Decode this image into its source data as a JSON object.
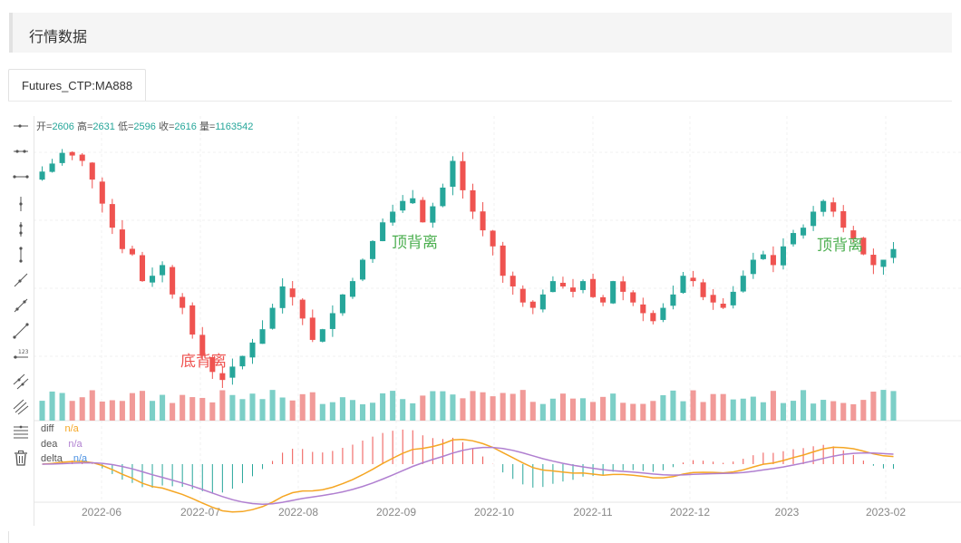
{
  "page": {
    "title": "行情数据"
  },
  "tabs": [
    {
      "label": "Futures_CTP:MA888"
    }
  ],
  "ohlc": {
    "open_label": "开=",
    "open": "2606",
    "high_label": "高=",
    "high": "2631",
    "low_label": "低=",
    "low": "2596",
    "close_label": "收=",
    "close": "2616",
    "vol_label": "量=",
    "vol": "1163542"
  },
  "annotations": {
    "bottom_divergence": "底背离",
    "top_divergence_1": "顶背离",
    "top_divergence_2": "顶背离"
  },
  "indicator_legend": [
    {
      "name": "diff",
      "value": "n/a",
      "color": "#f5a623"
    },
    {
      "name": "dea",
      "value": "n/a",
      "color": "#b07fd0"
    },
    {
      "name": "delta",
      "value": "n/a",
      "color": "#4a90e2"
    }
  ],
  "toolbar_icons": [
    "horizontal-ray-icon",
    "horizontal-segment-icon",
    "horizontal-line-icon",
    "vertical-ray-icon",
    "vertical-segment-icon",
    "vertical-line-icon",
    "ray-icon",
    "segment-icon",
    "straight-line-icon",
    "price-line-icon",
    "parallel-lines-icon",
    "price-channel-icon",
    "fibonacci-icon",
    "delete-icon"
  ],
  "colors": {
    "up": "#26a69a",
    "down": "#ef5350",
    "up_vol": "#7ccfc7",
    "down_vol": "#f19a98",
    "diff": "#f5a623",
    "dea": "#b07fd0",
    "top_annot": "#4caf50",
    "bottom_annot": "#ef5350"
  },
  "chart_data": {
    "type": "candlestick",
    "x_tick_labels": [
      "2022-06",
      "2022-07",
      "2022-08",
      "2022-09",
      "2022-10",
      "2022-11",
      "2022-12",
      "2023",
      "2023-02"
    ],
    "y_range": [
      2300,
      3250
    ],
    "candles_close_approx": [
      3110,
      3140,
      3180,
      3170,
      3150,
      3080,
      2990,
      2900,
      2820,
      2800,
      2700,
      2720,
      2760,
      2650,
      2600,
      2500,
      2420,
      2360,
      2330,
      2380,
      2420,
      2470,
      2520,
      2600,
      2680,
      2640,
      2560,
      2480,
      2520,
      2580,
      2650,
      2700,
      2780,
      2850,
      2920,
      2960,
      3000,
      3010,
      2920,
      2980,
      3050,
      3150,
      3040,
      2960,
      2890,
      2830,
      2720,
      2680,
      2620,
      2600,
      2650,
      2700,
      2680,
      2660,
      2700,
      2640,
      2620,
      2700,
      2660,
      2620,
      2580,
      2550,
      2600,
      2650,
      2720,
      2700,
      2640,
      2620,
      2600,
      2660,
      2720,
      2780,
      2800,
      2760,
      2830,
      2880,
      2900,
      2960,
      3000,
      2960,
      2900,
      2860,
      2800,
      2760,
      2780,
      2820
    ]
  }
}
